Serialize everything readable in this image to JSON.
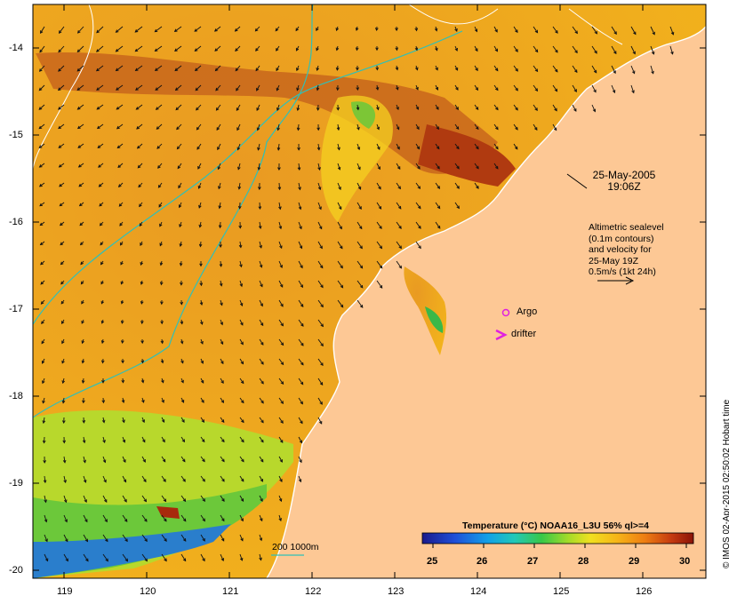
{
  "map": {
    "lat_labels": [
      "-14",
      "-15",
      "-16",
      "-17",
      "-18",
      "-19",
      "-20"
    ],
    "lon_labels": [
      "119",
      "120",
      "121",
      "122",
      "123",
      "124",
      "125",
      "126"
    ],
    "timestamp_line1": "25-May-2005",
    "timestamp_line2": "19:06Z",
    "velocity_note": [
      "Altimetric sealevel",
      "(0.1m contours)",
      "and velocity for",
      "25-May 19Z",
      "0.5m/s (1kt 24h)"
    ],
    "legend_argo": "Argo",
    "legend_drifter": "drifter",
    "depth_legend": "200  1000m",
    "credit": "© IMOS 02-Apr-2015 02:50:02 Hobart time"
  },
  "colorbar": {
    "title": "Temperature (°C) NOAA16_L3U 56% ql>=4",
    "ticks": [
      "25",
      "26",
      "27",
      "28",
      "29",
      "30"
    ]
  },
  "colors": {
    "land": "#fdc895",
    "warm_sst": "#f0a020",
    "hot_sst": "#c04a10",
    "cool_sst": "#30b850",
    "isobath": "#2fc0b8",
    "argo": "#e020e0"
  }
}
